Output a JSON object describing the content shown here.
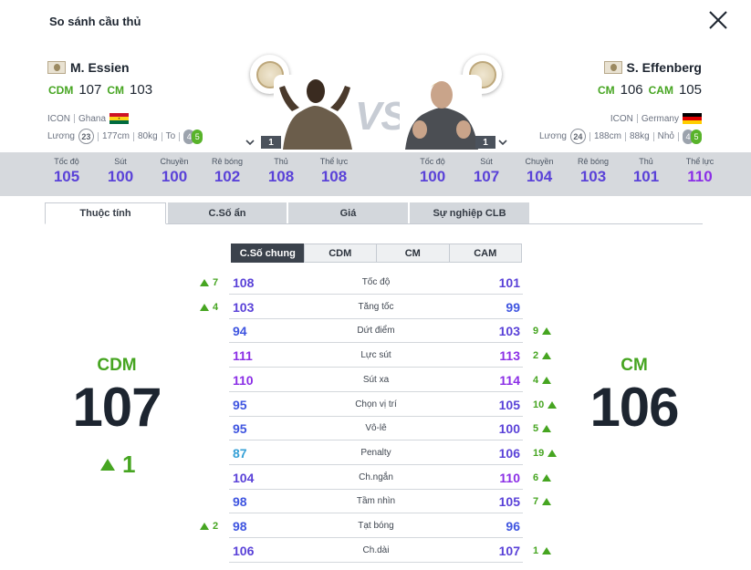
{
  "window": {
    "title": "So sánh cầu thủ"
  },
  "colors": {
    "green": "#46a521",
    "blue": "#3f55e0",
    "purple": "#8b2fe6",
    "violet": "#5a42d8",
    "teal": "#35a0d6"
  },
  "left_player": {
    "name": "M. Essien",
    "positions": [
      {
        "pos": "CDM",
        "ovr": "107"
      },
      {
        "pos": "CM",
        "ovr": "103"
      }
    ],
    "season": "ICON",
    "nation": "Ghana",
    "wage_label": "Lương",
    "wage": "23",
    "height": "177cm",
    "weight": "80kg",
    "body": "To",
    "weak_foot": "4",
    "skill": "5",
    "rank": "1"
  },
  "right_player": {
    "name": "S. Effenberg",
    "positions": [
      {
        "pos": "CM",
        "ovr": "106"
      },
      {
        "pos": "CAM",
        "ovr": "105"
      }
    ],
    "season": "ICON",
    "nation": "Germany",
    "wage_label": "Lương",
    "wage": "24",
    "height": "188cm",
    "weight": "88kg",
    "body": "Nhỏ",
    "weak_foot": "4",
    "skill": "5",
    "rank": "1"
  },
  "vs_label": "VS",
  "stats_left": [
    {
      "label": "Tốc độ",
      "value": "105",
      "color": "#5a42d8"
    },
    {
      "label": "Sút",
      "value": "100",
      "color": "#5a42d8"
    },
    {
      "label": "Chuyền",
      "value": "100",
      "color": "#5a42d8"
    },
    {
      "label": "Rê bóng",
      "value": "102",
      "color": "#5a42d8"
    },
    {
      "label": "Thủ",
      "value": "108",
      "color": "#5a42d8"
    },
    {
      "label": "Thể lực",
      "value": "108",
      "color": "#5a42d8"
    }
  ],
  "stats_right": [
    {
      "label": "Tốc độ",
      "value": "100",
      "color": "#5a42d8"
    },
    {
      "label": "Sút",
      "value": "107",
      "color": "#5a42d8"
    },
    {
      "label": "Chuyền",
      "value": "104",
      "color": "#5a42d8"
    },
    {
      "label": "Rê bóng",
      "value": "103",
      "color": "#5a42d8"
    },
    {
      "label": "Thủ",
      "value": "101",
      "color": "#5a42d8"
    },
    {
      "label": "Thể lực",
      "value": "110",
      "color": "#8b2fe6"
    }
  ],
  "tabs": [
    {
      "label": "Thuộc tính",
      "active": true
    },
    {
      "label": "C.Số ẩn"
    },
    {
      "label": "Giá"
    },
    {
      "label": "Sự nghiệp CLB"
    }
  ],
  "subtabs": [
    {
      "label": "C.Số chung",
      "active": true
    },
    {
      "label": "CDM"
    },
    {
      "label": "CM"
    },
    {
      "label": "CAM"
    }
  ],
  "attributes": [
    {
      "name": "Tốc độ",
      "left": "108",
      "lc": "#5a42d8",
      "right": "101",
      "rc": "#5a42d8",
      "ld": "7",
      "rd": ""
    },
    {
      "name": "Tăng tốc",
      "left": "103",
      "lc": "#5a42d8",
      "right": "99",
      "rc": "#3f55e0",
      "ld": "4",
      "rd": ""
    },
    {
      "name": "Dứt điểm",
      "left": "94",
      "lc": "#3f55e0",
      "right": "103",
      "rc": "#5a42d8",
      "ld": "",
      "rd": "9"
    },
    {
      "name": "Lực sút",
      "left": "111",
      "lc": "#8b2fe6",
      "right": "113",
      "rc": "#8b2fe6",
      "ld": "",
      "rd": "2"
    },
    {
      "name": "Sút xa",
      "left": "110",
      "lc": "#8b2fe6",
      "right": "114",
      "rc": "#8b2fe6",
      "ld": "",
      "rd": "4"
    },
    {
      "name": "Chọn vị trí",
      "left": "95",
      "lc": "#3f55e0",
      "right": "105",
      "rc": "#5a42d8",
      "ld": "",
      "rd": "10"
    },
    {
      "name": "Vô-lê",
      "left": "95",
      "lc": "#3f55e0",
      "right": "100",
      "rc": "#5a42d8",
      "ld": "",
      "rd": "5"
    },
    {
      "name": "Penalty",
      "left": "87",
      "lc": "#35a0d6",
      "right": "106",
      "rc": "#5a42d8",
      "ld": "",
      "rd": "19"
    },
    {
      "name": "Ch.ngắn",
      "left": "104",
      "lc": "#5a42d8",
      "right": "110",
      "rc": "#8b2fe6",
      "ld": "",
      "rd": "6"
    },
    {
      "name": "Tầm nhìn",
      "left": "98",
      "lc": "#3f55e0",
      "right": "105",
      "rc": "#5a42d8",
      "ld": "",
      "rd": "7"
    },
    {
      "name": "Tạt bóng",
      "left": "98",
      "lc": "#3f55e0",
      "right": "96",
      "rc": "#3f55e0",
      "ld": "2",
      "rd": ""
    },
    {
      "name": "Ch.dài",
      "left": "106",
      "lc": "#5a42d8",
      "right": "107",
      "rc": "#5a42d8",
      "ld": "",
      "rd": "1"
    }
  ],
  "summary": {
    "left_pos": "CDM",
    "left_ovr": "107",
    "left_diff": "1",
    "right_pos": "CM",
    "right_ovr": "106"
  }
}
